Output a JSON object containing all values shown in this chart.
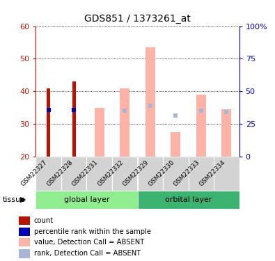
{
  "title": "GDS851 / 1373261_at",
  "samples": [
    "GSM22327",
    "GSM22328",
    "GSM22331",
    "GSM22332",
    "GSM22329",
    "GSM22330",
    "GSM22333",
    "GSM22334"
  ],
  "groups": [
    {
      "name": "global layer",
      "indices": [
        0,
        1,
        2,
        3
      ],
      "color": "#90ee90"
    },
    {
      "name": "orbital layer",
      "indices": [
        4,
        5,
        6,
        7
      ],
      "color": "#3cb371"
    }
  ],
  "group_label": "tissue",
  "ylim_left": [
    20,
    60
  ],
  "ylim_right": [
    0,
    100
  ],
  "yticks_left": [
    20,
    30,
    40,
    50,
    60
  ],
  "yticks_right": [
    0,
    25,
    50,
    75,
    100
  ],
  "ytick_labels_right": [
    "0",
    "25",
    "50",
    "75",
    "100%"
  ],
  "count_values": [
    41.0,
    43.0,
    null,
    null,
    null,
    null,
    null,
    null
  ],
  "rank_values": [
    36.0,
    36.0,
    null,
    null,
    null,
    null,
    null,
    null
  ],
  "absent_value": [
    null,
    null,
    35.0,
    41.0,
    53.5,
    27.5,
    39.0,
    34.5
  ],
  "absent_rank": [
    null,
    null,
    null,
    35.0,
    39.0,
    31.5,
    35.0,
    34.0
  ],
  "count_color": "#bb1100",
  "rank_color": "#0000bb",
  "absent_value_color": "#ffb3a7",
  "absent_rank_color": "#aab4d8",
  "axis_left_color": "#cc1100",
  "axis_right_color": "#0000cc",
  "legend_items": [
    {
      "label": "count",
      "color": "#bb1100"
    },
    {
      "label": "percentile rank within the sample",
      "color": "#0000bb"
    },
    {
      "label": "value, Detection Call = ABSENT",
      "color": "#ffb3a7"
    },
    {
      "label": "rank, Detection Call = ABSENT",
      "color": "#aab4d8"
    }
  ]
}
